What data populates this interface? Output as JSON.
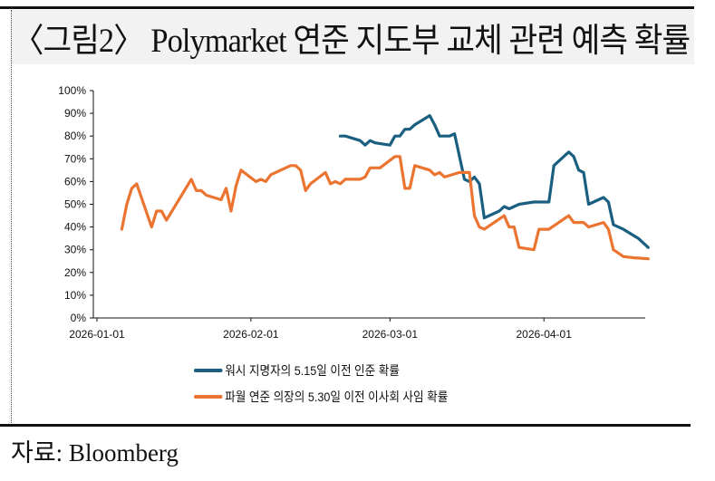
{
  "title": "〈그림2〉 Polymarket 연준 지도부 교체 관련 예측 확률",
  "source": "자료: Bloomberg",
  "chart_data": {
    "type": "line",
    "title": "〈그림2〉 Polymarket 연준 지도부 교체 관련 예측 확률",
    "xlabel": "",
    "ylabel": "",
    "x_unit": "days since 2026-01-01",
    "xlim": [
      0,
      111
    ],
    "ylim": [
      0,
      100
    ],
    "y_ticks": [
      0,
      10,
      20,
      30,
      40,
      50,
      60,
      70,
      80,
      90,
      100
    ],
    "y_tick_labels": [
      "0%",
      "10%",
      "20%",
      "30%",
      "40%",
      "50%",
      "60%",
      "70%",
      "80%",
      "90%",
      "100%"
    ],
    "x_ticks": [
      0,
      31,
      59,
      90
    ],
    "x_tick_labels": [
      "2026-01-01",
      "2026-02-01",
      "2026-03-01",
      "2026-04-01"
    ],
    "grid": false,
    "legend_position": "bottom",
    "series": [
      {
        "name": "워시 지명자의 5.15일 이전 인준 확률",
        "color": "#1a5f80",
        "points": [
          [
            49,
            80
          ],
          [
            50,
            80
          ],
          [
            53,
            78
          ],
          [
            54,
            76
          ],
          [
            55,
            78
          ],
          [
            56,
            77
          ],
          [
            59,
            76
          ],
          [
            60,
            80
          ],
          [
            61,
            80
          ],
          [
            62,
            83
          ],
          [
            63,
            83
          ],
          [
            64,
            85
          ],
          [
            67,
            89
          ],
          [
            68,
            85
          ],
          [
            69,
            80
          ],
          [
            71,
            80
          ],
          [
            72,
            81
          ],
          [
            74,
            61
          ],
          [
            75,
            60
          ],
          [
            76,
            62
          ],
          [
            77,
            59
          ],
          [
            78,
            44
          ],
          [
            81,
            47
          ],
          [
            82,
            49
          ],
          [
            83,
            48
          ],
          [
            85,
            50
          ],
          [
            88,
            51
          ],
          [
            91,
            51
          ],
          [
            92,
            67
          ],
          [
            95,
            73
          ],
          [
            96,
            71
          ],
          [
            97,
            65
          ],
          [
            98,
            64
          ],
          [
            99,
            50
          ],
          [
            102,
            53
          ],
          [
            103,
            51
          ],
          [
            104,
            41
          ],
          [
            106,
            39
          ],
          [
            109,
            35
          ],
          [
            111,
            31
          ]
        ]
      },
      {
        "name": "파월 연준 의장의 5.30일 이전 이사회 사임 확률",
        "color": "#ec7431",
        "points": [
          [
            5,
            39
          ],
          [
            6,
            50
          ],
          [
            7,
            57
          ],
          [
            8,
            59
          ],
          [
            11,
            40
          ],
          [
            12,
            47
          ],
          [
            13,
            47
          ],
          [
            14,
            43
          ],
          [
            19,
            61
          ],
          [
            20,
            56
          ],
          [
            21,
            56
          ],
          [
            22,
            54
          ],
          [
            25,
            52
          ],
          [
            26,
            57
          ],
          [
            27,
            47
          ],
          [
            28,
            58
          ],
          [
            29,
            65
          ],
          [
            32,
            60
          ],
          [
            33,
            61
          ],
          [
            34,
            60
          ],
          [
            35,
            63
          ],
          [
            39,
            67
          ],
          [
            40,
            67
          ],
          [
            41,
            65
          ],
          [
            42,
            56
          ],
          [
            43,
            59
          ],
          [
            46,
            64
          ],
          [
            47,
            59
          ],
          [
            48,
            60
          ],
          [
            49,
            59
          ],
          [
            50,
            61
          ],
          [
            53,
            61
          ],
          [
            54,
            62
          ],
          [
            55,
            66
          ],
          [
            57,
            66
          ],
          [
            60,
            71
          ],
          [
            61,
            71
          ],
          [
            62,
            57
          ],
          [
            63,
            57
          ],
          [
            64,
            67
          ],
          [
            67,
            65
          ],
          [
            68,
            63
          ],
          [
            69,
            64
          ],
          [
            70,
            62
          ],
          [
            73,
            64
          ],
          [
            75,
            64
          ],
          [
            76,
            45
          ],
          [
            77,
            40
          ],
          [
            78,
            39
          ],
          [
            82,
            45
          ],
          [
            83,
            40
          ],
          [
            84,
            40
          ],
          [
            85,
            31
          ],
          [
            88,
            30
          ],
          [
            89,
            39
          ],
          [
            91,
            39
          ],
          [
            95,
            45
          ],
          [
            96,
            42
          ],
          [
            98,
            42
          ],
          [
            99,
            40
          ],
          [
            102,
            42
          ],
          [
            103,
            39
          ],
          [
            104,
            30
          ],
          [
            106,
            27
          ],
          [
            108,
            26.5
          ],
          [
            111,
            26
          ]
        ]
      }
    ]
  }
}
